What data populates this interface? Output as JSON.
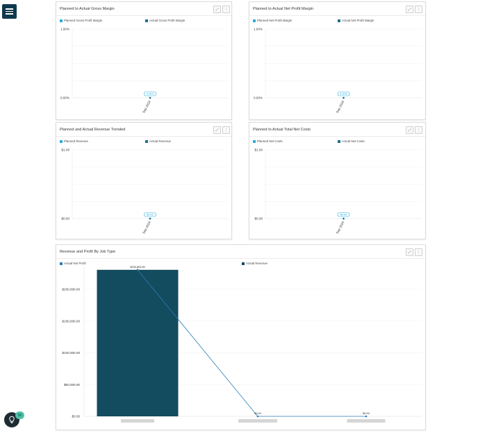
{
  "nav": {
    "menu_icon": "hamburger-menu-icon"
  },
  "colors": {
    "planned": "#29abe2",
    "actual": "#1b6f8f",
    "bar": "#134b5f",
    "line": "#2c7db5",
    "badge": "#4fc1a6",
    "menu_bg": "#0f3a4d"
  },
  "header_buttons": {
    "expand_icon": "expand-icon",
    "more_icon": "more-vertical-icon"
  },
  "cards": [
    {
      "title": "Planned to Actual Gross Margin",
      "legend": [
        "Planned Gross Profit Margin",
        "Actual Gross Profit Margin"
      ],
      "chart_data": {
        "type": "line",
        "x": [
          "Sep 2024"
        ],
        "series": [
          {
            "name": "Planned Gross Profit Margin",
            "values": [
              0
            ]
          },
          {
            "name": "Actual Gross Profit Margin",
            "values": [
              0
            ]
          }
        ],
        "y_ticks": [
          "1.00%",
          "0.00%"
        ],
        "point_label": "0.00%",
        "ylim": [
          0,
          1
        ]
      }
    },
    {
      "title": "Planned to Actual Net Profit Margin",
      "legend": [
        "Planned Net Profit Margin",
        "Actual Net Profit Margin"
      ],
      "chart_data": {
        "type": "line",
        "x": [
          "Sep 2024"
        ],
        "series": [
          {
            "name": "Planned Net Profit Margin",
            "values": [
              0
            ]
          },
          {
            "name": "Actual Net Profit Margin",
            "values": [
              0
            ]
          }
        ],
        "y_ticks": [
          "1.00%",
          "0.00%"
        ],
        "point_label": "0.00%",
        "ylim": [
          0,
          1
        ]
      }
    },
    {
      "title": "Planned and Actual Revenue Trended",
      "legend": [
        "Planned Revenue",
        "Actual Revenue"
      ],
      "chart_data": {
        "type": "line",
        "x": [
          "Sep 2024"
        ],
        "series": [
          {
            "name": "Planned Revenue",
            "values": [
              0
            ]
          },
          {
            "name": "Actual Revenue",
            "values": [
              0
            ]
          }
        ],
        "y_ticks": [
          "$1.00",
          "$0.00"
        ],
        "point_label": "$0.00",
        "ylim": [
          0,
          1
        ]
      }
    },
    {
      "title": "Planned to Actual Total Net Costs",
      "legend": [
        "Planned Net Costs",
        "Actual Net Costs"
      ],
      "chart_data": {
        "type": "line",
        "x": [
          "Sep 2024"
        ],
        "series": [
          {
            "name": "Planned Net Costs",
            "values": [
              0
            ]
          },
          {
            "name": "Actual Net Costs",
            "values": [
              0
            ]
          }
        ],
        "y_ticks": [
          "$1.00",
          "$0.00"
        ],
        "point_label": "$0.00",
        "ylim": [
          0,
          1
        ]
      }
    }
  ],
  "big_card": {
    "title": "Revenue and Profit By Job Type",
    "legend": [
      "Actual Net Profit",
      "Actual Revenue"
    ],
    "chart_data": {
      "type": "bar",
      "categories": [
        "",
        "",
        ""
      ],
      "series": [
        {
          "name": "Actual Revenue",
          "type": "bar",
          "values": [
            230803.89,
            0,
            0
          ]
        },
        {
          "name": "Actual Net Profit",
          "type": "line",
          "values": [
            230803.89,
            0,
            0
          ]
        }
      ],
      "point_labels": [
        "$230,803.89",
        "$0.00",
        "$0.00"
      ],
      "y_ticks": [
        "$200,000.00",
        "$150,000.00",
        "$100,000.00",
        "$50,000.00",
        "$0.00"
      ],
      "y_tick_values": [
        200000,
        150000,
        100000,
        50000,
        0
      ],
      "ylim": [
        0,
        235000
      ]
    }
  },
  "help": {
    "icon": "lightbulb-icon",
    "badge": "56"
  }
}
